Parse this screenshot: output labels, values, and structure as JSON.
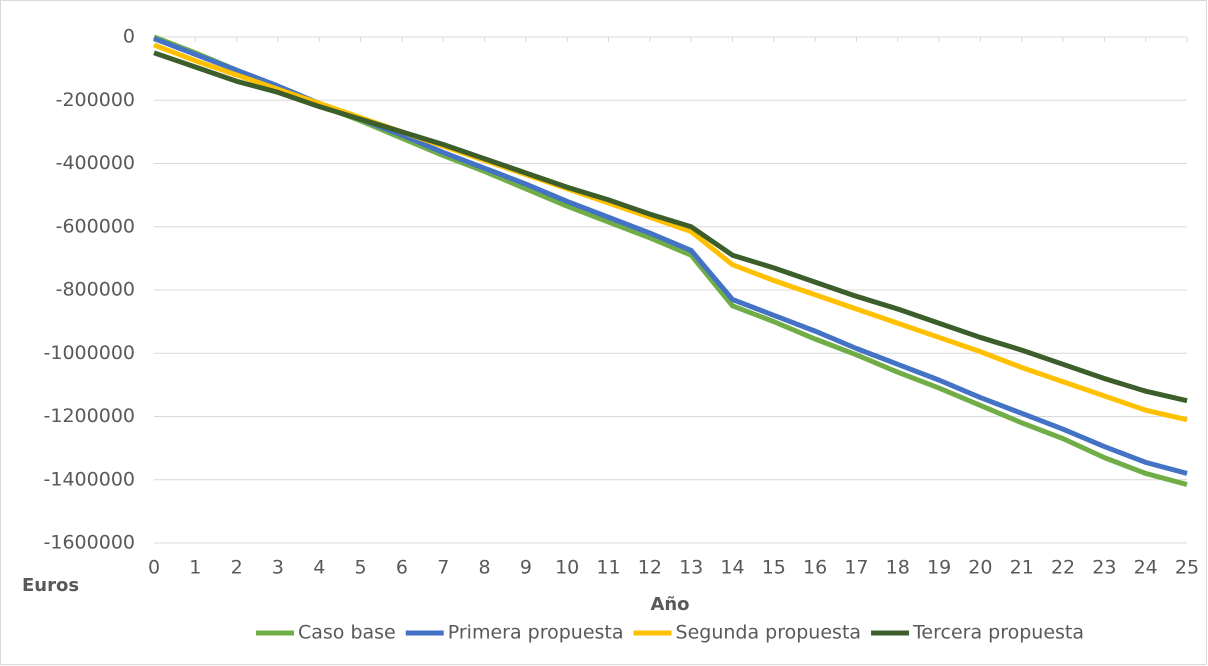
{
  "chart_data": {
    "type": "line",
    "x_label": "Año",
    "y_label": "Euros",
    "categories": [
      "0",
      "1",
      "2",
      "3",
      "4",
      "5",
      "6",
      "7",
      "8",
      "9",
      "10",
      "11",
      "12",
      "13",
      "14",
      "15",
      "16",
      "17",
      "18",
      "19",
      "20",
      "21",
      "22",
      "23",
      "24",
      "25"
    ],
    "series": [
      {
        "name": "Caso base",
        "color": "#70ad47",
        "values": [
          0,
          -50000,
          -105000,
          -160000,
          -215000,
          -265000,
          -320000,
          -375000,
          -425000,
          -480000,
          -535000,
          -585000,
          -635000,
          -690000,
          -850000,
          -900000,
          -955000,
          -1005000,
          -1060000,
          -1110000,
          -1165000,
          -1220000,
          -1270000,
          -1330000,
          -1380000,
          -1415000
        ]
      },
      {
        "name": "Primera propuesta",
        "color": "#4472c4",
        "values": [
          -5000,
          -55000,
          -105000,
          -155000,
          -210000,
          -260000,
          -310000,
          -365000,
          -415000,
          -465000,
          -520000,
          -570000,
          -620000,
          -675000,
          -830000,
          -880000,
          -930000,
          -985000,
          -1035000,
          -1085000,
          -1140000,
          -1190000,
          -1240000,
          -1295000,
          -1345000,
          -1380000
        ]
      },
      {
        "name": "Segunda propuesta",
        "color": "#ffc000",
        "values": [
          -25000,
          -75000,
          -120000,
          -165000,
          -210000,
          -255000,
          -300000,
          -345000,
          -390000,
          -435000,
          -480000,
          -525000,
          -570000,
          -615000,
          -720000,
          -770000,
          -815000,
          -860000,
          -905000,
          -950000,
          -995000,
          -1045000,
          -1090000,
          -1135000,
          -1180000,
          -1210000
        ]
      },
      {
        "name": "Tercera propuesta",
        "color": "#3b5e2b",
        "values": [
          -50000,
          -95000,
          -140000,
          -175000,
          -220000,
          -260000,
          -300000,
          -340000,
          -385000,
          -430000,
          -475000,
          -515000,
          -560000,
          -600000,
          -690000,
          -730000,
          -775000,
          -820000,
          -860000,
          -905000,
          -950000,
          -990000,
          -1035000,
          -1080000,
          -1120000,
          -1150000
        ]
      }
    ],
    "ylim": [
      -1600000,
      0
    ],
    "yticks": [
      0,
      -200000,
      -400000,
      -600000,
      -800000,
      -1000000,
      -1200000,
      -1400000,
      -1600000
    ],
    "grid": true,
    "legend": "bottom"
  }
}
